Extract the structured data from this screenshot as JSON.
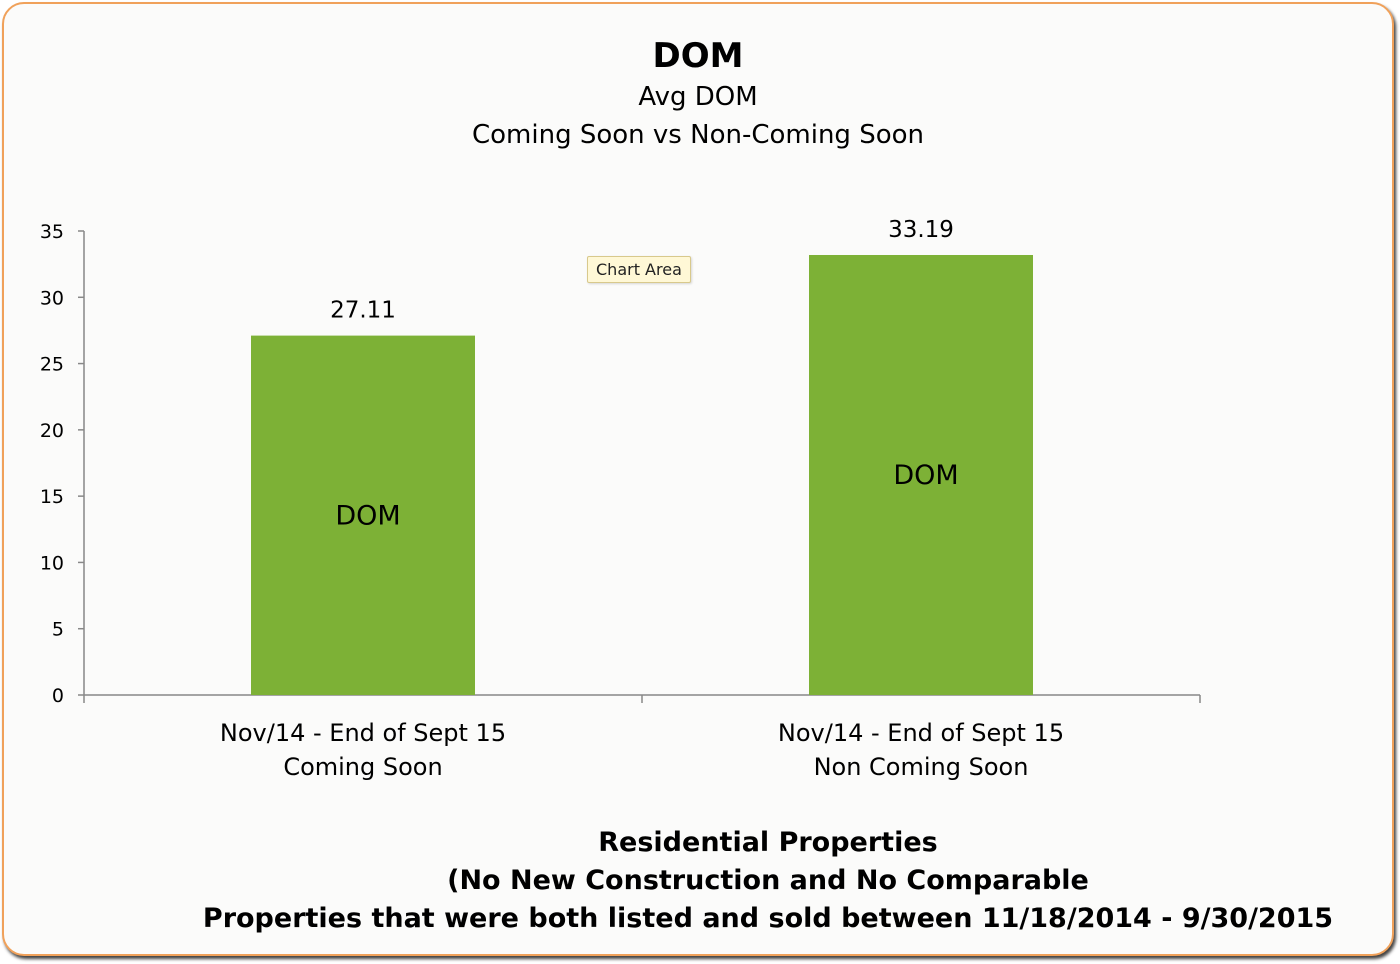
{
  "chart_data": {
    "type": "bar",
    "title": "DOM",
    "subtitle_lines": [
      "Avg DOM",
      "Coming Soon vs Non-Coming Soon"
    ],
    "categories": [
      [
        "Nov/14 - End of Sept 15",
        "Coming Soon"
      ],
      [
        "Nov/14 - End of Sept 15",
        "Non Coming Soon"
      ]
    ],
    "series": [
      {
        "name": "DOM",
        "values": [
          27.11,
          33.19
        ],
        "data_labels": [
          "27.11",
          "33.19"
        ],
        "color": "#7db136"
      }
    ],
    "inside_labels": [
      "DOM",
      "DOM"
    ],
    "ylim": [
      0,
      35
    ],
    "yticks": [
      0,
      5,
      10,
      15,
      20,
      25,
      30,
      35
    ],
    "grid": false,
    "legend": "none"
  },
  "tooltip": "Chart Area",
  "footer_lines": [
    "Residential Properties",
    "(No New Construction and No Comparable",
    "Properties  that were both listed and sold between  11/18/2014 - 9/30/2015"
  ],
  "colors": {
    "frame_border": "#f0a15a",
    "bar": "#7db136",
    "axis": "#888888"
  }
}
